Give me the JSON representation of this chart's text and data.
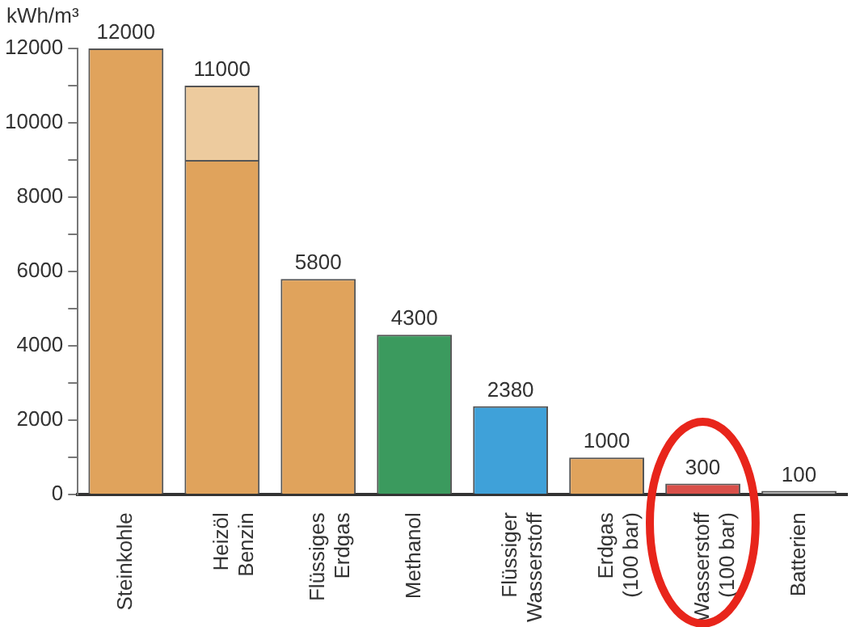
{
  "chart_data": {
    "type": "bar",
    "ylabel": "kWh/m³",
    "stacked": true,
    "categories": [
      "Steinkohle",
      "Heizöl\nBenzin",
      "Flüssiges\nErdgas",
      "Methanol",
      "Flüssiger\nWasserstoff",
      "Erdgas\n(100 bar)",
      "Wasserstoff\n(100 bar)",
      "Batterien"
    ],
    "series": [
      {
        "colors": [
          "#e0a35c",
          "#e0a35c",
          "#e0a35c",
          "#3b9a5e",
          "#3fa1d9",
          "#e0a35c",
          "#d9504a",
          "#b0b0b0"
        ],
        "values": [
          12000,
          9000,
          5800,
          4300,
          2380,
          1000,
          300,
          100
        ]
      },
      {
        "color": "#edcb9e",
        "values": [
          null,
          2000,
          null,
          null,
          null,
          null,
          null,
          null
        ]
      }
    ],
    "totals": [
      "12000",
      "11000",
      "5800",
      "4300",
      "2380",
      "1000",
      "300",
      "100"
    ],
    "ylim": [
      0,
      12000
    ],
    "yticks": [
      0,
      {
        "value": 1000,
        "label": null
      },
      2000,
      {
        "value": 3000,
        "label": null
      },
      4000,
      {
        "value": 5000,
        "label": null
      },
      6000,
      {
        "value": 7000,
        "label": null
      },
      8000,
      {
        "value": 9000,
        "label": null
      },
      10000,
      {
        "value": 11000,
        "label": null
      },
      12000
    ],
    "grid": false,
    "legend": false
  }
}
